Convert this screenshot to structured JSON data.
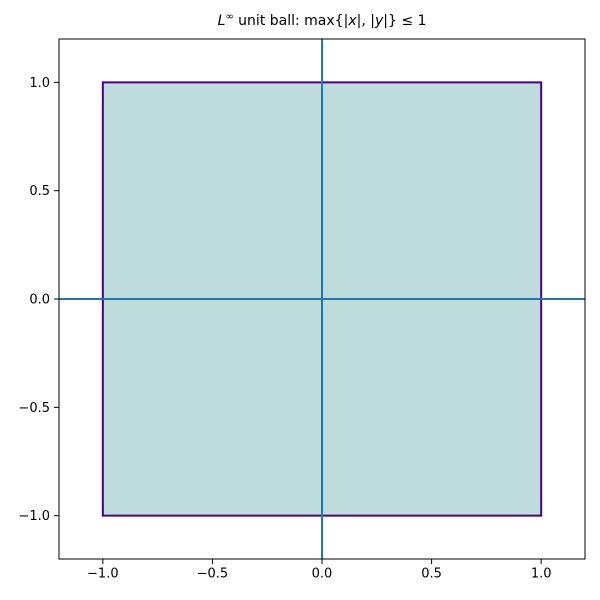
{
  "figure": {
    "title_parts": {
      "norm_symbol": "L",
      "superscript": "∞",
      "middle": " unit ball: max{|",
      "var_x": "x",
      "sep": "|, |",
      "var_y": "y",
      "end": "|} ≤ 1"
    }
  },
  "chart_data": {
    "type": "area",
    "title": "L^∞ unit ball: max{|x|, |y|} ≤ 1",
    "xlabel": "",
    "ylabel": "",
    "xlim": [
      -1.2,
      1.2
    ],
    "ylim": [
      -1.2,
      1.2
    ],
    "grid": false,
    "legend": "none",
    "xticks": [
      -1.0,
      -0.5,
      0.0,
      0.5,
      1.0
    ],
    "yticks": [
      -1.0,
      -0.5,
      0.0,
      0.5,
      1.0
    ],
    "xtick_labels": [
      "−1.0",
      "−0.5",
      "0.0",
      "0.5",
      "1.0"
    ],
    "ytick_labels": [
      "−1.0",
      "−0.5",
      "0.0",
      "0.5",
      "1.0"
    ],
    "shape": {
      "name": "L-infinity unit ball (square)",
      "kind": "polygon",
      "vertices": [
        [
          -1,
          -1
        ],
        [
          1,
          -1
        ],
        [
          1,
          1
        ],
        [
          -1,
          1
        ]
      ]
    },
    "axis_lines": {
      "vertical_x": 0,
      "horizontal_y": 0
    },
    "colors": {
      "fill": "#bfdcdc",
      "edge": "#4b0082",
      "axis_line": "#1f77b4",
      "frame": "#000000",
      "background": "#ffffff"
    }
  }
}
